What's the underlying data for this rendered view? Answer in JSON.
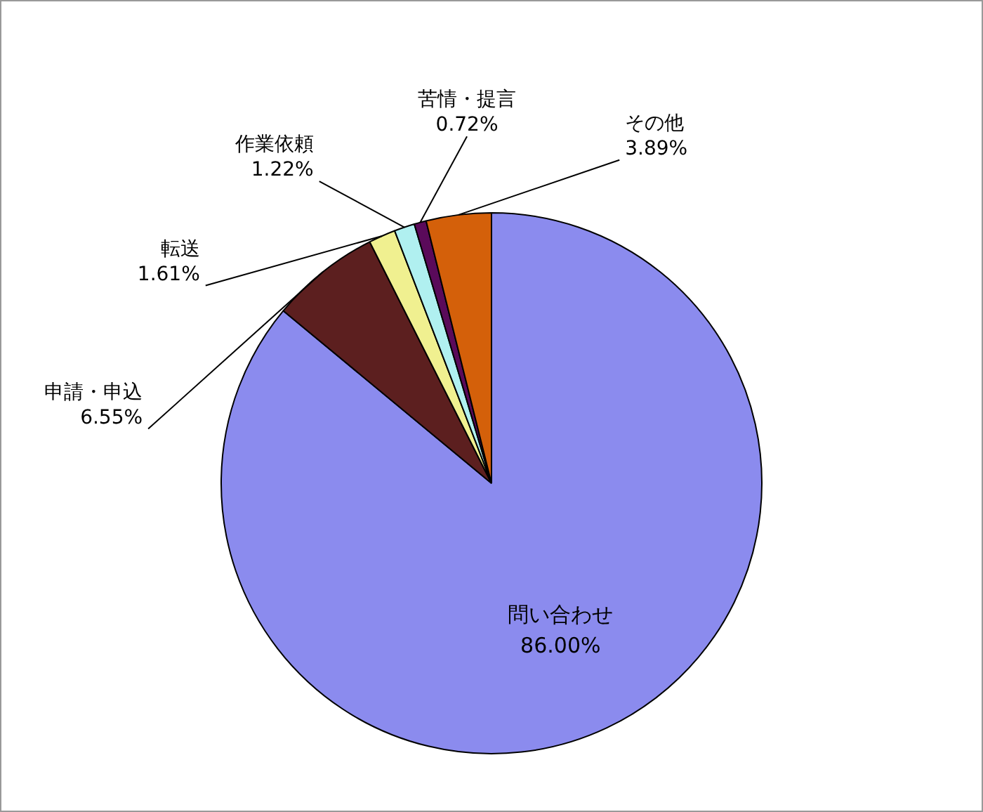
{
  "chart_data": {
    "type": "pie",
    "categories": [
      "問い合わせ",
      "申請・申込",
      "転送",
      "作業依頼",
      "苦情・提言",
      "その他"
    ],
    "values": [
      86.0,
      6.55,
      1.61,
      1.22,
      0.72,
      3.89
    ],
    "value_labels": [
      "86.00%",
      "6.55%",
      "1.61%",
      "1.22%",
      "0.72%",
      "3.89%"
    ],
    "colors": [
      "#8b8bee",
      "#5c1f1f",
      "#f0f090",
      "#b0f0f0",
      "#5a0a5a",
      "#d4600a"
    ],
    "legend": false
  }
}
